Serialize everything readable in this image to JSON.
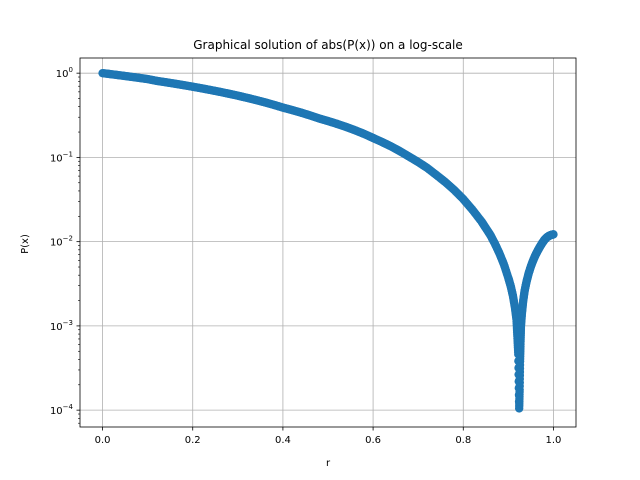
{
  "chart_data": {
    "type": "scatter",
    "title": "Graphical solution of abs(P(x)) on a log-scale",
    "xlabel": "r",
    "ylabel": "P(x)",
    "xlim": [
      -0.05,
      1.05
    ],
    "ylim_exp": [
      -4.2,
      0.18
    ],
    "yscale": "log",
    "grid": true,
    "x_ticks": [
      0.0,
      0.2,
      0.4,
      0.6,
      0.8,
      1.0
    ],
    "x_tick_labels": [
      "0.0",
      "0.2",
      "0.4",
      "0.6",
      "0.8",
      "1.0"
    ],
    "y_tick_exponents": [
      -4,
      -3,
      -2,
      -1,
      0
    ],
    "y_tick_base": "10",
    "marker_color": "#1f77b4",
    "series": [
      {
        "points": [
          [
            0.0,
            1.0
          ],
          [
            0.02,
            0.97
          ],
          [
            0.04,
            0.94
          ],
          [
            0.06,
            0.91
          ],
          [
            0.08,
            0.88
          ],
          [
            0.1,
            0.85
          ],
          [
            0.12,
            0.81
          ],
          [
            0.14,
            0.78
          ],
          [
            0.16,
            0.75
          ],
          [
            0.18,
            0.72
          ],
          [
            0.2,
            0.69
          ],
          [
            0.22,
            0.66
          ],
          [
            0.24,
            0.63
          ],
          [
            0.26,
            0.6
          ],
          [
            0.28,
            0.57
          ],
          [
            0.3,
            0.54
          ],
          [
            0.32,
            0.51
          ],
          [
            0.34,
            0.48
          ],
          [
            0.36,
            0.45
          ],
          [
            0.38,
            0.42
          ],
          [
            0.4,
            0.39
          ],
          [
            0.42,
            0.365
          ],
          [
            0.44,
            0.34
          ],
          [
            0.46,
            0.315
          ],
          [
            0.48,
            0.29
          ],
          [
            0.5,
            0.27
          ],
          [
            0.52,
            0.25
          ],
          [
            0.54,
            0.23
          ],
          [
            0.56,
            0.21
          ],
          [
            0.58,
            0.19
          ],
          [
            0.6,
            0.17
          ],
          [
            0.62,
            0.152
          ],
          [
            0.64,
            0.135
          ],
          [
            0.66,
            0.118
          ],
          [
            0.68,
            0.102
          ],
          [
            0.7,
            0.088
          ],
          [
            0.72,
            0.075
          ],
          [
            0.74,
            0.062
          ],
          [
            0.76,
            0.051
          ],
          [
            0.78,
            0.041
          ],
          [
            0.8,
            0.032
          ],
          [
            0.82,
            0.024
          ],
          [
            0.84,
            0.0175
          ],
          [
            0.85,
            0.0145
          ],
          [
            0.86,
            0.012
          ],
          [
            0.87,
            0.0095
          ],
          [
            0.88,
            0.0073
          ],
          [
            0.89,
            0.0054
          ],
          [
            0.9,
            0.0037
          ],
          [
            0.905,
            0.003
          ],
          [
            0.91,
            0.0023
          ],
          [
            0.915,
            0.0016
          ],
          [
            0.918,
            0.0012
          ],
          [
            0.92,
            0.00075
          ],
          [
            0.922,
            0.00046
          ],
          [
            0.924,
            0.000105
          ],
          [
            0.925,
            0.000175
          ],
          [
            0.926,
            0.00038
          ],
          [
            0.927,
            0.00065
          ],
          [
            0.928,
            0.001
          ],
          [
            0.93,
            0.0014
          ],
          [
            0.933,
            0.002
          ],
          [
            0.936,
            0.0026
          ],
          [
            0.94,
            0.0033
          ],
          [
            0.945,
            0.0042
          ],
          [
            0.95,
            0.0051
          ],
          [
            0.955,
            0.006
          ],
          [
            0.96,
            0.0069
          ],
          [
            0.965,
            0.0078
          ],
          [
            0.97,
            0.0087
          ],
          [
            0.975,
            0.0096
          ],
          [
            0.98,
            0.0105
          ],
          [
            0.985,
            0.0112
          ],
          [
            0.99,
            0.0117
          ],
          [
            0.995,
            0.012
          ],
          [
            1.0,
            0.0122
          ]
        ]
      }
    ]
  }
}
